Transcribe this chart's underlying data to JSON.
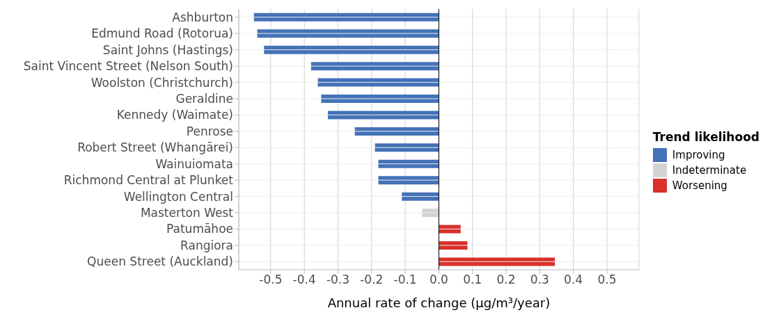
{
  "chart_data": {
    "type": "bar",
    "orientation": "horizontal",
    "stacked": true,
    "xlabel": "Annual rate of change (µg/m³/year)",
    "legend_title": "Trend likelihood",
    "legend": "right",
    "categories": [
      "Ashburton",
      "Edmund Road (Rotorua)",
      "Saint Johns (Hastings)",
      "Saint Vincent Street (Nelson South)",
      "Woolston (Christchurch)",
      "Geraldine",
      "Kennedy (Waimate)",
      "Penrose",
      "Robert Street (Whangārei)",
      "Wainuiomata",
      "Richmond Central at Plunket",
      "Wellington Central",
      "Masterton West",
      "Patumāhoe",
      "Rangiora",
      "Queen Street (Auckland)"
    ],
    "series": [
      {
        "name": "Improving",
        "color": "#4472b8",
        "values": [
          -0.55,
          -0.54,
          -0.52,
          -0.38,
          -0.36,
          -0.35,
          -0.33,
          -0.25,
          -0.19,
          -0.18,
          -0.18,
          -0.11,
          null,
          null,
          null,
          null
        ]
      },
      {
        "name": "Indeterminate",
        "color": "#d3d3d3",
        "values": [
          null,
          null,
          null,
          null,
          null,
          null,
          null,
          null,
          null,
          null,
          null,
          null,
          -0.05,
          null,
          null,
          null
        ]
      },
      {
        "name": "Worsening",
        "color": "#d9302a",
        "values": [
          null,
          null,
          null,
          null,
          null,
          null,
          null,
          null,
          null,
          null,
          null,
          null,
          null,
          0.065,
          0.085,
          0.345
        ]
      }
    ],
    "xlim": [
      -0.595,
      0.595
    ],
    "xticks": [
      -0.5,
      -0.4,
      -0.3,
      -0.2,
      -0.1,
      {
        "value": 0,
        "label": "0.0"
      },
      0.1,
      0.2,
      0.3,
      0.4,
      0.5
    ],
    "grid": true
  }
}
